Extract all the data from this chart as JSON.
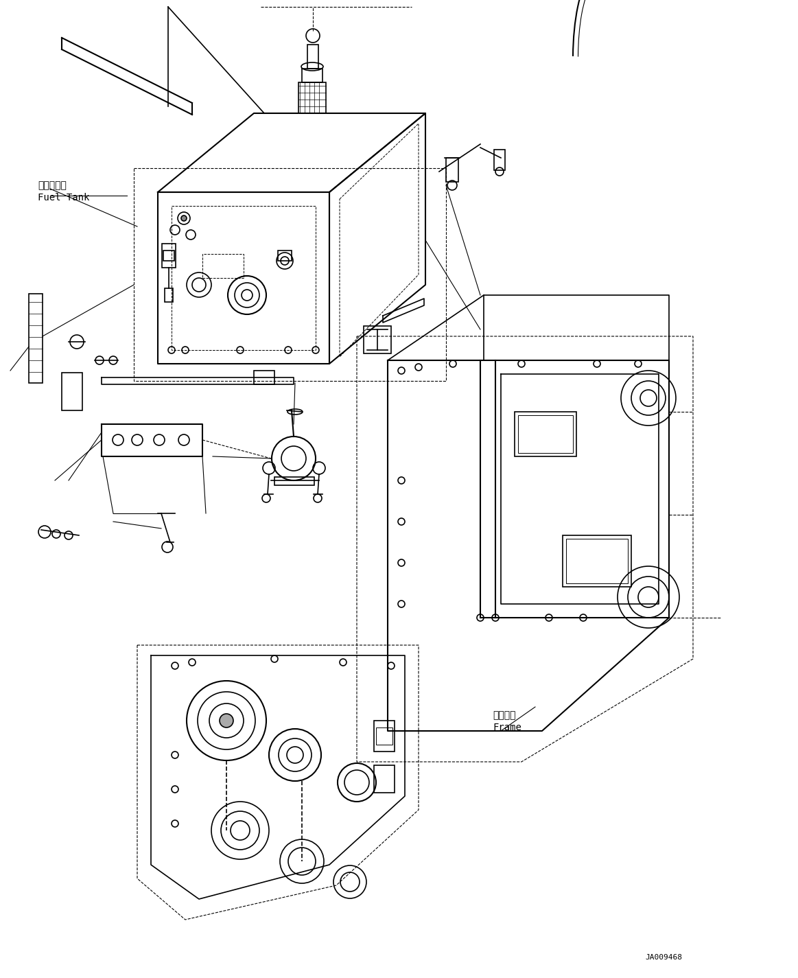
{
  "bg_color": "#ffffff",
  "line_color": "#000000",
  "fig_width": 11.63,
  "fig_height": 14.25,
  "dpi": 100,
  "label_fuel_tank_jp": "燃料タンク",
  "label_fuel_tank_en": "Fuel Tank",
  "label_frame_jp": "フレーム",
  "label_frame_en": "Frame",
  "label_code": "JA009468",
  "font_size_label": 10,
  "font_size_code": 8
}
